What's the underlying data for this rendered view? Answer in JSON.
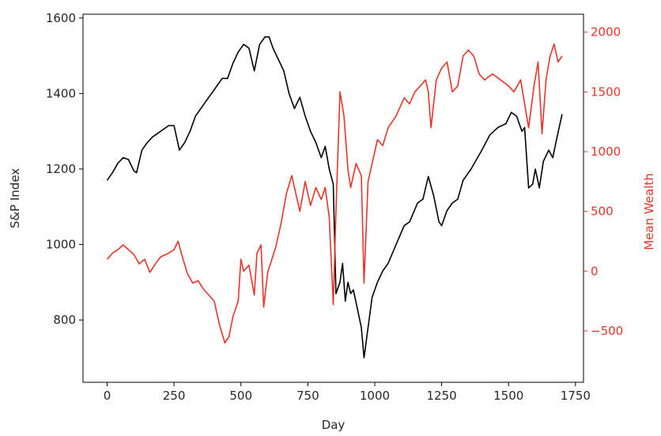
{
  "chart_data": {
    "type": "line",
    "xlabel": "Day",
    "ylabel_left": "S&P Index",
    "ylabel_right": "Mean Wealth",
    "xlim": [
      -90,
      1780
    ],
    "ylim_left": [
      635,
      1610
    ],
    "ylim_right": [
      -930,
      2150
    ],
    "x_ticks": [
      0,
      250,
      500,
      750,
      1000,
      1250,
      1500,
      1750
    ],
    "y_ticks_left": [
      800,
      1000,
      1200,
      1400,
      1600
    ],
    "y_ticks_right": [
      -500,
      0,
      500,
      1000,
      1500,
      2000
    ],
    "grid": false,
    "colors": {
      "left_series": "#000000",
      "right_series": "#e8342a",
      "right_axis": "#e8342a",
      "frame": "#000000"
    },
    "series": [
      {
        "axis": "left",
        "color": "#000000",
        "x": [
          0,
          20,
          40,
          60,
          80,
          100,
          110,
          130,
          150,
          170,
          200,
          230,
          250,
          270,
          290,
          310,
          330,
          360,
          400,
          430,
          450,
          470,
          490,
          510,
          530,
          550,
          570,
          590,
          605,
          620,
          640,
          660,
          680,
          700,
          720,
          740,
          760,
          780,
          800,
          815,
          830,
          845,
          855,
          870,
          880,
          890,
          900,
          910,
          920,
          935,
          950,
          960,
          975,
          990,
          1010,
          1030,
          1050,
          1080,
          1110,
          1130,
          1160,
          1180,
          1200,
          1220,
          1240,
          1250,
          1270,
          1290,
          1310,
          1330,
          1360,
          1400,
          1430,
          1460,
          1490,
          1510,
          1530,
          1550,
          1560,
          1575,
          1590,
          1600,
          1615,
          1630,
          1650,
          1665,
          1680,
          1700
        ],
        "values": [
          1170,
          1190,
          1215,
          1230,
          1225,
          1195,
          1190,
          1250,
          1270,
          1285,
          1300,
          1315,
          1315,
          1250,
          1270,
          1300,
          1340,
          1370,
          1410,
          1440,
          1440,
          1480,
          1510,
          1530,
          1520,
          1460,
          1530,
          1550,
          1550,
          1520,
          1490,
          1460,
          1400,
          1360,
          1390,
          1340,
          1300,
          1270,
          1230,
          1260,
          1200,
          1160,
          870,
          900,
          950,
          850,
          900,
          870,
          880,
          830,
          780,
          700,
          780,
          860,
          900,
          930,
          950,
          1000,
          1050,
          1060,
          1110,
          1120,
          1180,
          1130,
          1060,
          1050,
          1090,
          1110,
          1120,
          1170,
          1200,
          1250,
          1290,
          1310,
          1320,
          1350,
          1340,
          1300,
          1310,
          1150,
          1160,
          1200,
          1150,
          1220,
          1250,
          1230,
          1280,
          1345
        ]
      },
      {
        "axis": "right",
        "color": "#e8342a",
        "x": [
          0,
          20,
          40,
          60,
          80,
          100,
          120,
          140,
          160,
          180,
          200,
          230,
          250,
          265,
          280,
          300,
          320,
          340,
          360,
          380,
          400,
          420,
          440,
          455,
          470,
          490,
          500,
          510,
          530,
          550,
          560,
          575,
          585,
          600,
          630,
          650,
          670,
          690,
          700,
          720,
          740,
          760,
          780,
          800,
          815,
          830,
          845,
          855,
          870,
          885,
          900,
          910,
          930,
          950,
          960,
          975,
          990,
          1010,
          1030,
          1050,
          1080,
          1110,
          1130,
          1150,
          1170,
          1190,
          1200,
          1210,
          1230,
          1250,
          1270,
          1290,
          1310,
          1330,
          1350,
          1370,
          1390,
          1410,
          1440,
          1470,
          1500,
          1520,
          1545,
          1560,
          1575,
          1595,
          1610,
          1625,
          1640,
          1655,
          1670,
          1685,
          1700
        ],
        "values": [
          100,
          150,
          180,
          220,
          180,
          140,
          60,
          100,
          -10,
          60,
          120,
          150,
          180,
          250,
          130,
          -20,
          -100,
          -80,
          -150,
          -200,
          -250,
          -450,
          -600,
          -550,
          -380,
          -250,
          100,
          0,
          50,
          -200,
          150,
          220,
          -300,
          -10,
          200,
          400,
          650,
          800,
          700,
          500,
          750,
          550,
          700,
          600,
          700,
          450,
          -280,
          500,
          1500,
          1300,
          850,
          700,
          900,
          800,
          -100,
          750,
          900,
          1100,
          1050,
          1200,
          1300,
          1450,
          1400,
          1500,
          1550,
          1600,
          1500,
          1200,
          1600,
          1700,
          1750,
          1500,
          1550,
          1800,
          1850,
          1800,
          1650,
          1600,
          1650,
          1600,
          1550,
          1500,
          1600,
          1400,
          1200,
          1550,
          1750,
          1150,
          1600,
          1800,
          1900,
          1750,
          1800
        ]
      }
    ]
  }
}
